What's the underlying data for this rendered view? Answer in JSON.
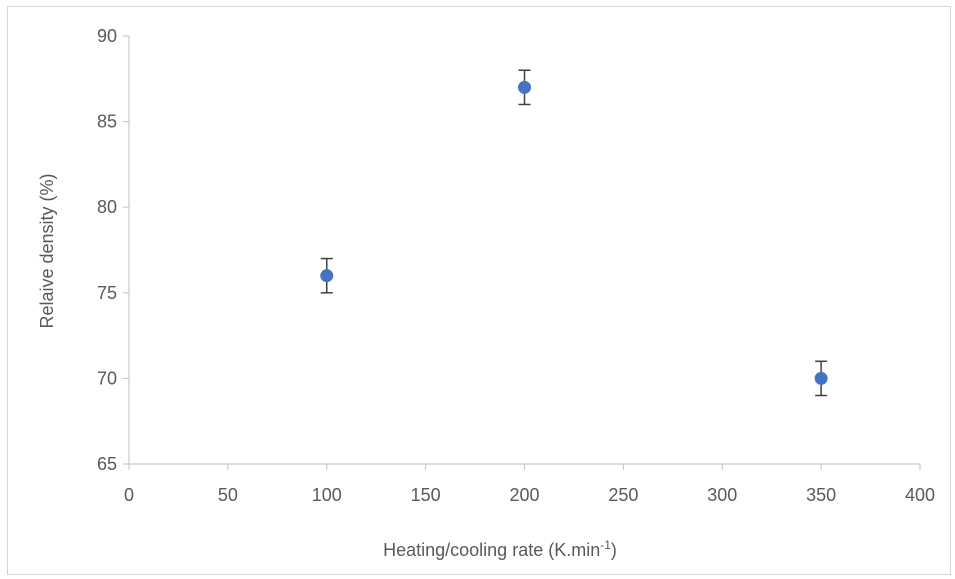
{
  "chart_data": {
    "type": "scatter",
    "title": "",
    "xlabel": "Heating/cooling rate (K.min",
    "xlabel_superscript": "-1",
    "xlabel_suffix": ")",
    "ylabel": "Relaive density (%)",
    "xlim": [
      0,
      400
    ],
    "ylim": [
      65,
      90
    ],
    "x_ticks": [
      0,
      50,
      100,
      150,
      200,
      250,
      300,
      350,
      400
    ],
    "y_ticks": [
      65,
      70,
      75,
      80,
      85,
      90
    ],
    "grid": false,
    "legend": "none",
    "series": [
      {
        "x": [
          100,
          200,
          350
        ],
        "y": [
          76,
          87,
          70
        ],
        "error": [
          1,
          1,
          1
        ],
        "color": "#4472c4"
      }
    ],
    "axis_color": "#bfbfbf",
    "text_color": "#595959",
    "error_bar_color": "#404040"
  }
}
